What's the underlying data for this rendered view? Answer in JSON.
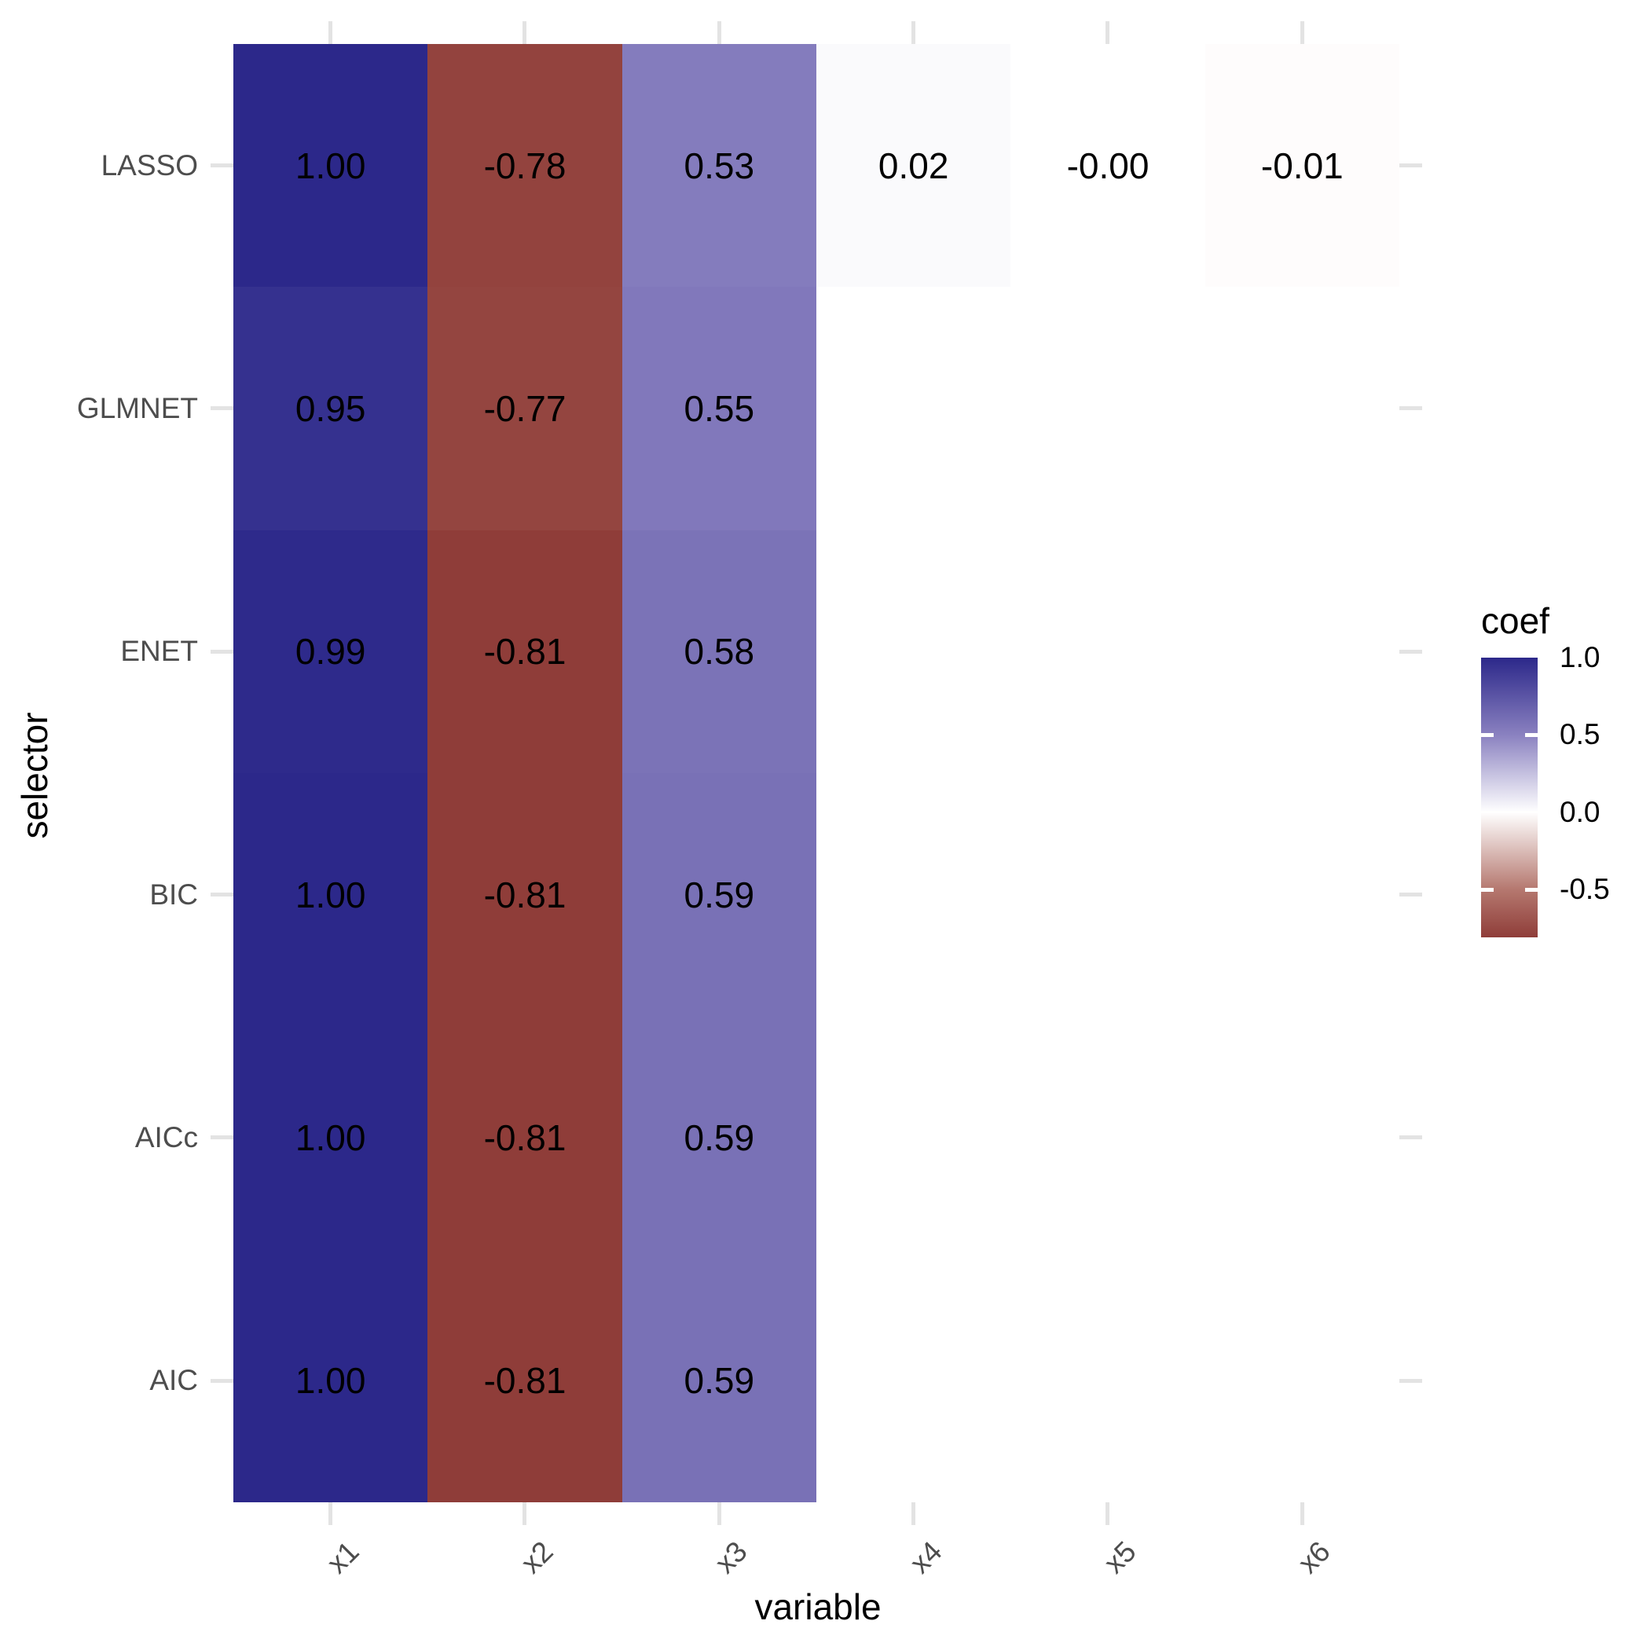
{
  "figure": {
    "x_axis_title": "variable",
    "y_axis_title": "selector",
    "legend": {
      "title": "coef",
      "tick_labels": [
        "1.0",
        "0.5",
        "0.0",
        "-0.5"
      ],
      "tick_values": [
        1.0,
        0.5,
        0.0,
        -0.5
      ],
      "range_min": -0.81,
      "range_max": 1.0
    }
  },
  "chart_data": {
    "type": "heatmap",
    "title": "",
    "xlabel": "variable",
    "ylabel": "selector",
    "legend_title": "coef",
    "x_categories": [
      "x1",
      "x2",
      "x3",
      "x4",
      "x5",
      "x6"
    ],
    "y_categories_top_to_bottom": [
      "LASSO",
      "GLMNET",
      "ENET",
      "BIC",
      "AICc",
      "AIC"
    ],
    "series": [
      {
        "name": "LASSO",
        "values": [
          1.0,
          -0.78,
          0.53,
          0.02,
          -0.0,
          -0.01
        ],
        "labels": [
          "1.00",
          "-0.78",
          "0.53",
          "0.02",
          "-0.00",
          "-0.01"
        ]
      },
      {
        "name": "GLMNET",
        "values": [
          0.95,
          -0.77,
          0.55,
          null,
          null,
          null
        ],
        "labels": [
          "0.95",
          "-0.77",
          "0.55",
          null,
          null,
          null
        ]
      },
      {
        "name": "ENET",
        "values": [
          0.99,
          -0.81,
          0.58,
          null,
          null,
          null
        ],
        "labels": [
          "0.99",
          "-0.81",
          "0.58",
          null,
          null,
          null
        ]
      },
      {
        "name": "BIC",
        "values": [
          1.0,
          -0.81,
          0.59,
          null,
          null,
          null
        ],
        "labels": [
          "1.00",
          "-0.81",
          "0.59",
          null,
          null,
          null
        ]
      },
      {
        "name": "AICc",
        "values": [
          1.0,
          -0.81,
          0.59,
          null,
          null,
          null
        ],
        "labels": [
          "1.00",
          "-0.81",
          "0.59",
          null,
          null,
          null
        ]
      },
      {
        "name": "AIC",
        "values": [
          1.0,
          -0.81,
          0.59,
          null,
          null,
          null
        ],
        "labels": [
          "1.00",
          "-0.81",
          "0.59",
          null,
          null,
          null
        ]
      }
    ],
    "legend_range": [
      -0.81,
      1.0
    ],
    "grid": "category ticks visible as short dashes on all four panel edges",
    "legend_position": "right",
    "color_scale": {
      "stops": [
        {
          "value": 1.0,
          "color": "#2C288A"
        },
        {
          "value": 0.5,
          "color": "#8A81C0"
        },
        {
          "value": 0.0,
          "color": "#FFFFFF"
        },
        {
          "value": -0.5,
          "color": "#B5786F"
        },
        {
          "value": -0.81,
          "color": "#8F3D39"
        }
      ],
      "grid_dash_color": "#E3E3E3",
      "axis_text_color": "#4D4D4D",
      "title_color": "#000000",
      "cell_text_color": "#000000",
      "background": "#FFFFFF"
    }
  }
}
